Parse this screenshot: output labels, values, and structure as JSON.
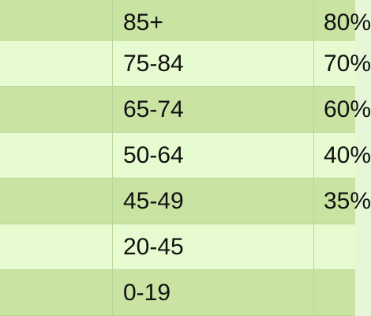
{
  "table": {
    "rows": [
      {
        "col0": "",
        "col1": "85+",
        "col2": "80%"
      },
      {
        "col0": "",
        "col1": "75-84",
        "col2": "70%"
      },
      {
        "col0": "",
        "col1": "65-74",
        "col2": "60%"
      },
      {
        "col0": "",
        "col1": "50-64",
        "col2": "40%"
      },
      {
        "col0": "",
        "col1": "45-49",
        "col2": "35%"
      },
      {
        "col0": "",
        "col1": "20-45",
        "col2": ""
      },
      {
        "col0": "",
        "col1": "0-19",
        "col2": ""
      }
    ]
  },
  "colors": {
    "row_dark": "#c9e3a3",
    "row_light": "#e6fbd0",
    "gridline": "#b9d79b",
    "text": "#111111"
  }
}
